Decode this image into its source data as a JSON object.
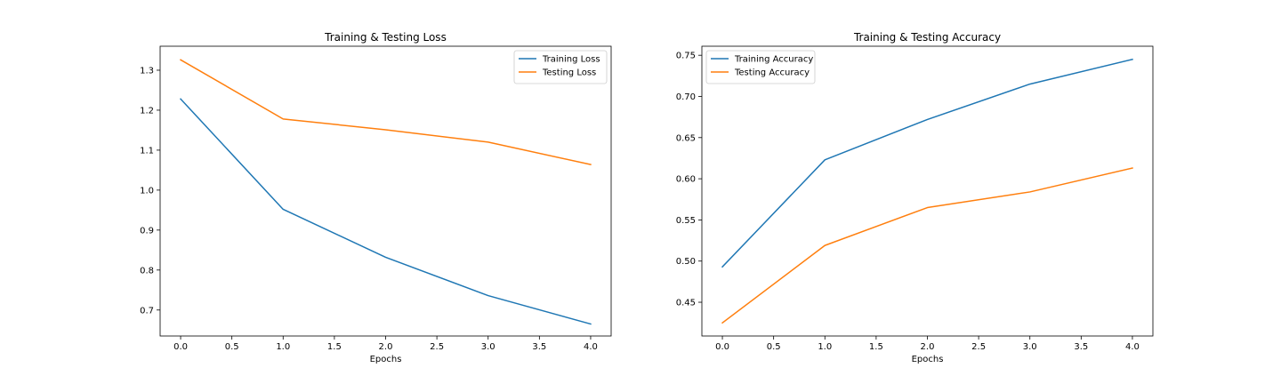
{
  "chart_data": [
    {
      "type": "line",
      "title": "Training & Testing Loss",
      "xlabel": "Epochs",
      "ylabel": "",
      "x": [
        0,
        1,
        2,
        3,
        4
      ],
      "xlim": [
        -0.2,
        4.2
      ],
      "ylim": [
        0.635,
        1.36
      ],
      "xticks": [
        "0.0",
        "0.5",
        "1.0",
        "1.5",
        "2.0",
        "2.5",
        "3.0",
        "3.5",
        "4.0"
      ],
      "yticks": [
        "0.7",
        "0.8",
        "0.9",
        "1.0",
        "1.1",
        "1.2",
        "1.3"
      ],
      "grid": false,
      "legend": "top-right",
      "series": [
        {
          "name": "Training Loss",
          "color": "#1f77b4",
          "values": [
            1.228,
            0.952,
            0.832,
            0.736,
            0.665
          ]
        },
        {
          "name": "Testing Loss",
          "color": "#ff7f0e",
          "values": [
            1.326,
            1.178,
            1.151,
            1.12,
            1.064
          ]
        }
      ]
    },
    {
      "type": "line",
      "title": "Training & Testing Accuracy",
      "xlabel": "Epochs",
      "ylabel": "",
      "x": [
        0,
        1,
        2,
        3,
        4
      ],
      "xlim": [
        -0.2,
        4.2
      ],
      "ylim": [
        0.409,
        0.761
      ],
      "xticks": [
        "0.0",
        "0.5",
        "1.0",
        "1.5",
        "2.0",
        "2.5",
        "3.0",
        "3.5",
        "4.0"
      ],
      "yticks": [
        "0.45",
        "0.50",
        "0.55",
        "0.60",
        "0.65",
        "0.70",
        "0.75"
      ],
      "grid": false,
      "legend": "top-left",
      "series": [
        {
          "name": "Training Accuracy",
          "color": "#1f77b4",
          "values": [
            0.493,
            0.623,
            0.672,
            0.715,
            0.745
          ]
        },
        {
          "name": "Testing Accuracy",
          "color": "#ff7f0e",
          "values": [
            0.425,
            0.519,
            0.565,
            0.584,
            0.613
          ]
        }
      ]
    }
  ]
}
